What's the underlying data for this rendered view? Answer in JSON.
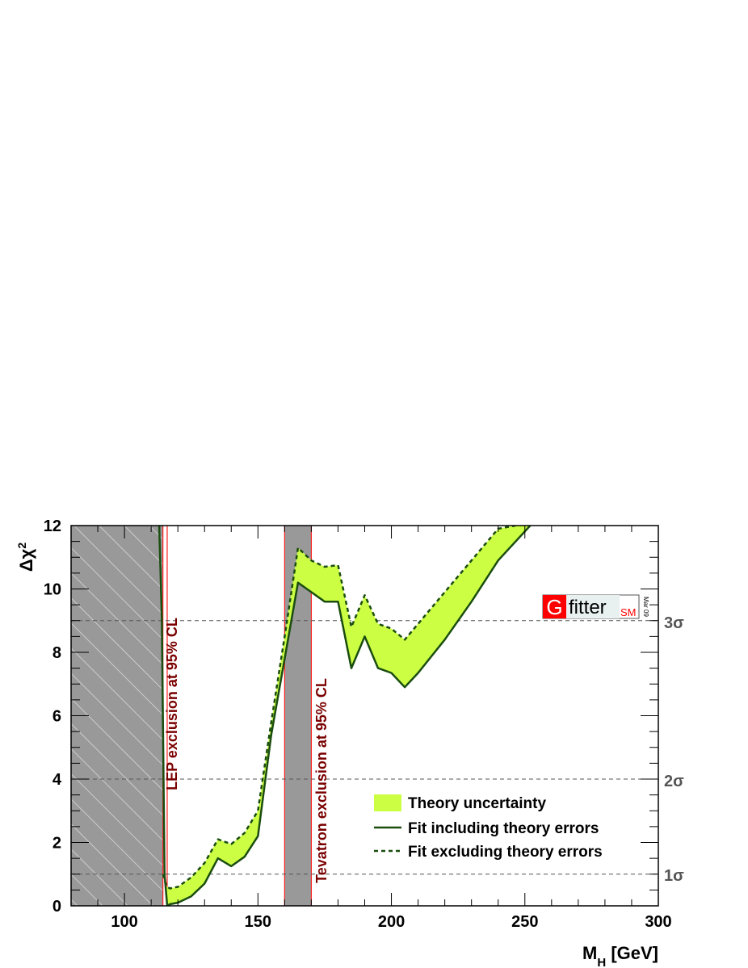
{
  "chart_data": {
    "type": "line",
    "xlabel_main": "M",
    "xlabel_sub": "H",
    "xlabel_unit": " [GeV]",
    "ylabel_main": "Δχ",
    "ylabel_sup": "2",
    "xlim": [
      80,
      300
    ],
    "ylim": [
      0,
      12
    ],
    "x_ticks": [
      100,
      150,
      200,
      250,
      300
    ],
    "y_ticks": [
      0,
      2,
      4,
      6,
      8,
      10,
      12
    ],
    "sigma_lines": [
      {
        "value": 1,
        "label": "1σ"
      },
      {
        "value": 4,
        "label": "2σ"
      },
      {
        "value": 9,
        "label": "3σ"
      }
    ],
    "exclusion_regions": [
      {
        "name": "LEP exclusion at 95% CL",
        "x_range": [
          80,
          114.4
        ],
        "hatched": true
      },
      {
        "name": "Tevatron exclusion at 95% CL",
        "x_range": [
          160,
          170
        ],
        "hatched": false
      }
    ],
    "series": [
      {
        "name": "Fit including theory errors",
        "style": "solid",
        "color": "#1a4d0f",
        "x": [
          113.0,
          114.0,
          115.0,
          116.0,
          117.0,
          120.0,
          125.0,
          130.0,
          135.0,
          140.0,
          145.0,
          150.0,
          155.0,
          160.0,
          165.0,
          170.0,
          175.0,
          180.0,
          185.0,
          190.0,
          195.0,
          200.0,
          205.0,
          210.0,
          220.0,
          230.0,
          240.0,
          252.0
        ],
        "y": [
          12.0,
          9.0,
          1.0,
          0.0,
          0.05,
          0.1,
          0.3,
          0.7,
          1.5,
          1.25,
          1.55,
          2.2,
          5.4,
          7.8,
          10.2,
          9.9,
          9.6,
          9.6,
          7.5,
          8.5,
          7.5,
          7.35,
          6.9,
          7.35,
          8.4,
          9.6,
          10.9,
          12.0
        ]
      },
      {
        "name": "Fit excluding theory errors",
        "style": "dashed",
        "color": "#1a4d0f",
        "x": [
          114.5,
          115.0,
          116.0,
          117.0,
          120.0,
          125.0,
          130.0,
          135.0,
          140.0,
          145.0,
          150.0,
          155.0,
          160.0,
          165.0,
          170.0,
          175.0,
          180.0,
          185.0,
          190.0,
          195.0,
          200.0,
          205.0,
          210.0,
          220.0,
          230.0,
          240.0,
          246.5
        ],
        "y": [
          1.0,
          0.8,
          0.6,
          0.55,
          0.6,
          0.9,
          1.35,
          2.1,
          1.95,
          2.3,
          3.0,
          5.8,
          8.5,
          11.3,
          10.9,
          10.7,
          10.75,
          8.8,
          9.8,
          8.9,
          8.75,
          8.4,
          8.9,
          9.9,
          10.9,
          11.9,
          12.0
        ]
      }
    ],
    "band": {
      "name": "Theory uncertainty",
      "color": "#ccff44"
    },
    "legend_position": "bottom-right",
    "logo": {
      "g": "G",
      "word": "fitter",
      "sub": "SM",
      "date": "Mar 09"
    }
  }
}
